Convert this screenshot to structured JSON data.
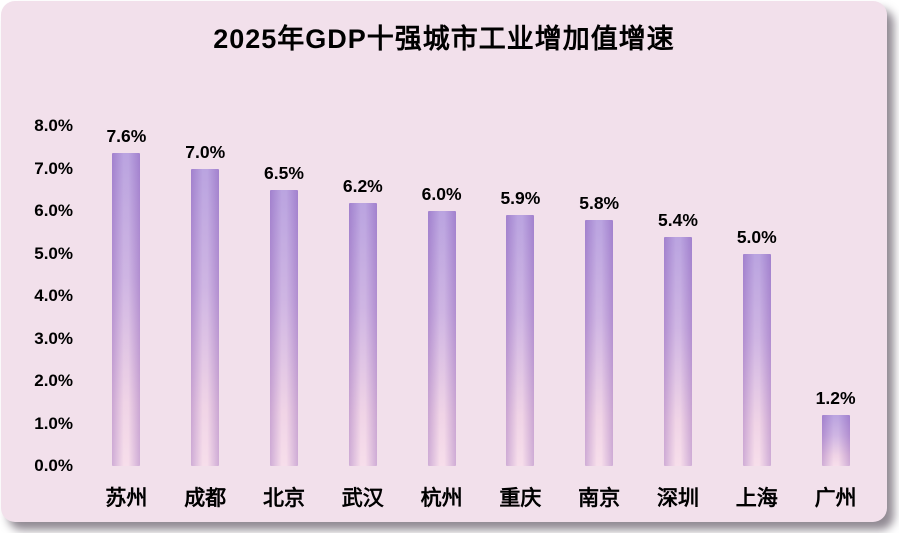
{
  "title": "2025年GDP十强城市工业增加值增速",
  "colors": {
    "background": "#f2e0eb",
    "bar_top": "#a98dd8",
    "bar_bottom": "#f5d6e6",
    "text": "#000000"
  },
  "chart_data": {
    "type": "bar",
    "title": "2025年GDP十强城市工业增加值增速",
    "categories": [
      "苏州",
      "成都",
      "北京",
      "武汉",
      "杭州",
      "重庆",
      "南京",
      "深圳",
      "上海",
      "广州"
    ],
    "values": [
      7.6,
      7.0,
      6.5,
      6.2,
      6.0,
      5.9,
      5.8,
      5.4,
      5.0,
      1.2
    ],
    "value_labels": [
      "7.6%",
      "7.0%",
      "6.5%",
      "6.2%",
      "6.0%",
      "5.9%",
      "5.8%",
      "5.4%",
      "5.0%",
      "1.2%"
    ],
    "xlabel": "",
    "ylabel": "",
    "ylim": [
      0,
      8
    ],
    "ytick_labels": [
      "8.0%",
      "7.0%",
      "6.0%",
      "5.0%",
      "4.0%",
      "3.0%",
      "2.0%",
      "1.0%",
      "0.0%"
    ],
    "grid": false,
    "legend": "none"
  }
}
